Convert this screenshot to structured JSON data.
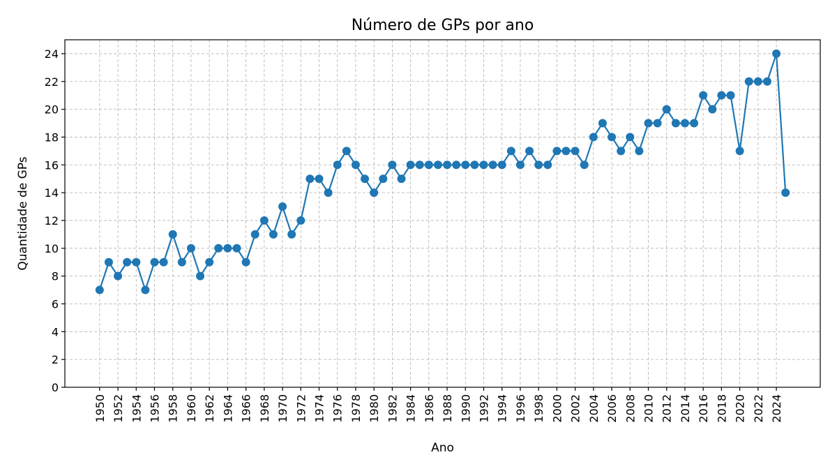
{
  "chart_data": {
    "type": "line",
    "title": "Número de GPs por ano",
    "xlabel": "Ano",
    "ylabel": "Quantidade de GPs",
    "ylim": [
      0,
      25
    ],
    "yticks": [
      0,
      2,
      4,
      6,
      8,
      10,
      12,
      14,
      16,
      18,
      20,
      22,
      24
    ],
    "xlim": [
      1946.2,
      2028.8
    ],
    "xticks": [
      1950,
      1952,
      1954,
      1956,
      1958,
      1960,
      1962,
      1964,
      1966,
      1968,
      1970,
      1972,
      1974,
      1976,
      1978,
      1980,
      1982,
      1984,
      1986,
      1988,
      1990,
      1992,
      1994,
      1996,
      1998,
      2000,
      2002,
      2004,
      2006,
      2008,
      2010,
      2012,
      2014,
      2016,
      2018,
      2020,
      2022,
      2024
    ],
    "grid": true,
    "color": "#1f77b4",
    "series": [
      {
        "x": [
          1950,
          1951,
          1952,
          1953,
          1954,
          1955,
          1956,
          1957,
          1958,
          1959,
          1960,
          1961,
          1962,
          1963,
          1964,
          1965,
          1966,
          1967,
          1968,
          1969,
          1970,
          1971,
          1972,
          1973,
          1974,
          1975,
          1976,
          1977,
          1978,
          1979,
          1980,
          1981,
          1982,
          1983,
          1984,
          1985,
          1986,
          1987,
          1988,
          1989,
          1990,
          1991,
          1992,
          1993,
          1994,
          1995,
          1996,
          1997,
          1998,
          1999,
          2000,
          2001,
          2002,
          2003,
          2004,
          2005,
          2006,
          2007,
          2008,
          2009,
          2010,
          2011,
          2012,
          2013,
          2014,
          2015,
          2016,
          2017,
          2018,
          2019,
          2020,
          2021,
          2022,
          2023,
          2024,
          2025
        ],
        "values": [
          7,
          9,
          8,
          9,
          9,
          7,
          9,
          9,
          11,
          9,
          10,
          8,
          9,
          10,
          10,
          10,
          9,
          11,
          12,
          11,
          13,
          11,
          12,
          15,
          15,
          14,
          16,
          17,
          16,
          15,
          14,
          15,
          16,
          15,
          16,
          16,
          16,
          16,
          16,
          16,
          16,
          16,
          16,
          16,
          16,
          17,
          16,
          17,
          16,
          16,
          17,
          17,
          17,
          16,
          18,
          19,
          18,
          17,
          18,
          17,
          19,
          19,
          20,
          19,
          19,
          19,
          21,
          20,
          21,
          21,
          17,
          22,
          22,
          22,
          24,
          14
        ]
      }
    ]
  }
}
